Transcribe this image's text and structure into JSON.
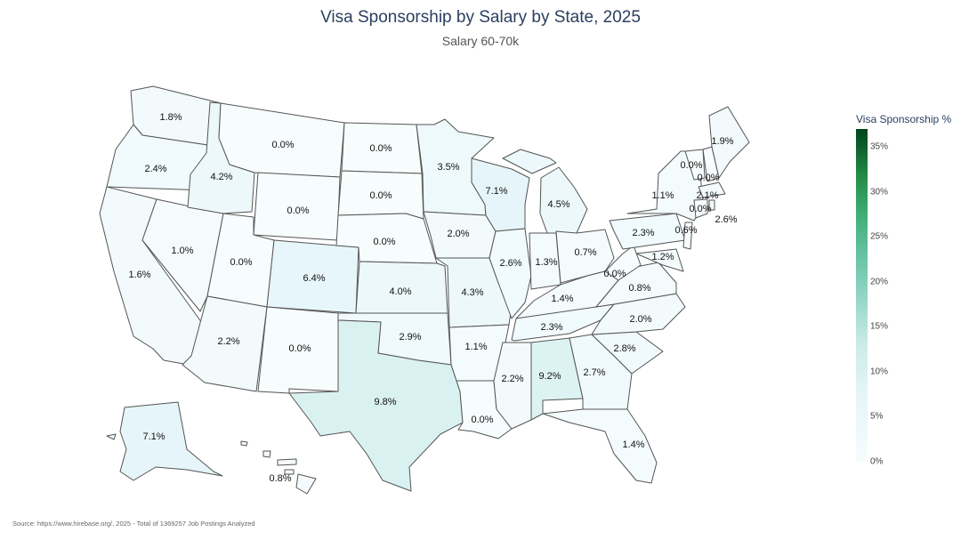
{
  "title": "Visa Sponsorship by Salary by State, 2025",
  "subtitle": "Salary 60-70k",
  "legend": {
    "title": "Visa Sponsorship %",
    "ticks": [
      "35%",
      "30%",
      "25%",
      "20%",
      "15%",
      "10%",
      "5%",
      "0%"
    ],
    "tick_values": [
      35,
      30,
      25,
      20,
      15,
      10,
      5,
      0
    ],
    "range": [
      0,
      37
    ]
  },
  "source": "Source: https://www.hirebase.org/, 2025 - Total of 1369257 Job Postings Analyzed",
  "states": [
    {
      "code": "WA",
      "label": "1.8%",
      "value": 1.8
    },
    {
      "code": "OR",
      "label": "2.4%",
      "value": 2.4
    },
    {
      "code": "CA",
      "label": "1.6%",
      "value": 1.6
    },
    {
      "code": "NV",
      "label": "1.0%",
      "value": 1.0
    },
    {
      "code": "ID",
      "label": "4.2%",
      "value": 4.2
    },
    {
      "code": "MT",
      "label": "0.0%",
      "value": 0.0
    },
    {
      "code": "WY",
      "label": "0.0%",
      "value": 0.0
    },
    {
      "code": "UT",
      "label": "0.0%",
      "value": 0.0
    },
    {
      "code": "AZ",
      "label": "2.2%",
      "value": 2.2
    },
    {
      "code": "CO",
      "label": "6.4%",
      "value": 6.4
    },
    {
      "code": "NM",
      "label": "0.0%",
      "value": 0.0
    },
    {
      "code": "ND",
      "label": "0.0%",
      "value": 0.0
    },
    {
      "code": "SD",
      "label": "0.0%",
      "value": 0.0
    },
    {
      "code": "NE",
      "label": "0.0%",
      "value": 0.0
    },
    {
      "code": "KS",
      "label": "4.0%",
      "value": 4.0
    },
    {
      "code": "OK",
      "label": "2.9%",
      "value": 2.9
    },
    {
      "code": "TX",
      "label": "9.8%",
      "value": 9.8
    },
    {
      "code": "MN",
      "label": "3.5%",
      "value": 3.5
    },
    {
      "code": "IA",
      "label": "2.0%",
      "value": 2.0
    },
    {
      "code": "MO",
      "label": "4.3%",
      "value": 4.3
    },
    {
      "code": "AR",
      "label": "1.1%",
      "value": 1.1
    },
    {
      "code": "LA",
      "label": "0.0%",
      "value": 0.0
    },
    {
      "code": "WI",
      "label": "7.1%",
      "value": 7.1
    },
    {
      "code": "IL",
      "label": "2.6%",
      "value": 2.6
    },
    {
      "code": "MI",
      "label": "4.5%",
      "value": 4.5
    },
    {
      "code": "IN",
      "label": "1.3%",
      "value": 1.3
    },
    {
      "code": "OH",
      "label": "0.7%",
      "value": 0.7
    },
    {
      "code": "KY",
      "label": "1.4%",
      "value": 1.4
    },
    {
      "code": "TN",
      "label": "2.3%",
      "value": 2.3
    },
    {
      "code": "MS",
      "label": "2.2%",
      "value": 2.2
    },
    {
      "code": "AL",
      "label": "9.2%",
      "value": 9.2
    },
    {
      "code": "GA",
      "label": "2.7%",
      "value": 2.7
    },
    {
      "code": "FL",
      "label": "1.4%",
      "value": 1.4
    },
    {
      "code": "SC",
      "label": "2.8%",
      "value": 2.8
    },
    {
      "code": "NC",
      "label": "2.0%",
      "value": 2.0
    },
    {
      "code": "VA",
      "label": "0.8%",
      "value": 0.8
    },
    {
      "code": "WV",
      "label": "0.0%",
      "value": 0.0
    },
    {
      "code": "PA",
      "label": "2.3%",
      "value": 2.3
    },
    {
      "code": "NY",
      "label": "1.1%",
      "value": 1.1
    },
    {
      "code": "VT",
      "label": "0.0%",
      "value": 0.0
    },
    {
      "code": "NH",
      "label": "0.0%",
      "value": 0.0
    },
    {
      "code": "ME",
      "label": "1.9%",
      "value": 1.9
    },
    {
      "code": "MA",
      "label": "2.1%",
      "value": 2.1
    },
    {
      "code": "CT",
      "label": "0.0%",
      "value": 0.0
    },
    {
      "code": "RI",
      "label": "2.6%",
      "value": 2.6
    },
    {
      "code": "NJ",
      "label": "0.6%",
      "value": 0.6
    },
    {
      "code": "MD",
      "label": "1.2%",
      "value": 1.2
    },
    {
      "code": "AK",
      "label": "7.1%",
      "value": 7.1
    },
    {
      "code": "HI",
      "label": "0.8%",
      "value": 0.8
    }
  ]
}
